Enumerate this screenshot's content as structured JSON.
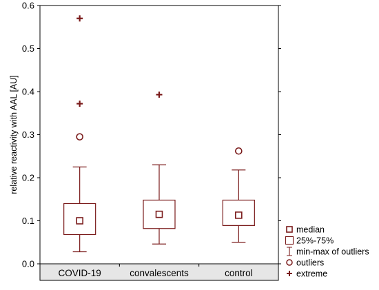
{
  "chart_data": {
    "type": "box",
    "ylabel": "relative reactivity with AAL [AU]",
    "ylim": [
      0,
      0.6
    ],
    "yticks": [
      "0.0",
      "0.1",
      "0.2",
      "0.3",
      "0.4",
      "0.5",
      "0.6"
    ],
    "grid": false,
    "legend_position": "right",
    "colors": {
      "mark": "#7a1a1a",
      "axis": "#000000",
      "category_band": "#e6e6e6"
    },
    "categories": [
      "COVID-19",
      "convalescents",
      "control"
    ],
    "series": [
      {
        "category": "COVID-19",
        "median": 0.1,
        "q1": 0.068,
        "q3": 0.14,
        "min": 0.028,
        "max": 0.225,
        "outliers": [
          0.295
        ],
        "extremes": [
          0.372,
          0.57
        ]
      },
      {
        "category": "convalescents",
        "median": 0.115,
        "q1": 0.082,
        "q3": 0.148,
        "min": 0.046,
        "max": 0.23,
        "outliers": [],
        "extremes": [
          0.393
        ]
      },
      {
        "category": "control",
        "median": 0.113,
        "q1": 0.089,
        "q3": 0.148,
        "min": 0.05,
        "max": 0.218,
        "outliers": [
          0.262
        ],
        "extremes": []
      }
    ],
    "legend": [
      {
        "symbol": "median-square",
        "label": "median"
      },
      {
        "symbol": "box",
        "label": "25%-75%"
      },
      {
        "symbol": "whisker",
        "label": "min-max of outliers"
      },
      {
        "symbol": "circle",
        "label": "outliers"
      },
      {
        "symbol": "plus",
        "label": "extreme"
      }
    ]
  }
}
